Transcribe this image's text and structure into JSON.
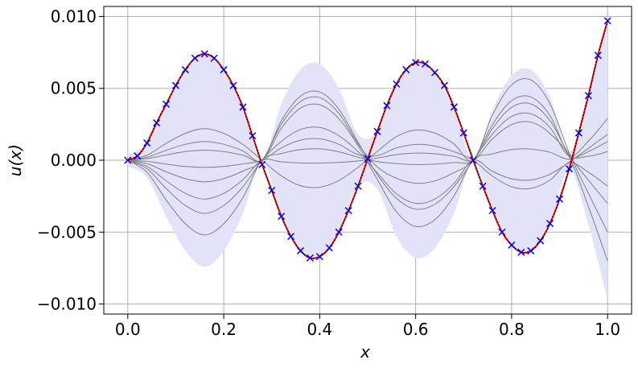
{
  "chart_data": {
    "type": "line",
    "xlabel": "x",
    "ylabel": "u(x)",
    "xlim": [
      -0.05,
      1.05
    ],
    "ylim": [
      -0.0107,
      0.0107
    ],
    "xticks": [
      {
        "value": 0,
        "label": "0.0"
      },
      {
        "value": 0.2,
        "label": "0.2"
      },
      {
        "value": 0.4,
        "label": "0.4"
      },
      {
        "value": 0.6,
        "label": "0.6"
      },
      {
        "value": 0.8,
        "label": "0.8"
      },
      {
        "value": 1,
        "label": "1.0"
      }
    ],
    "yticks": [
      {
        "value": 0.01,
        "label": "0.010"
      },
      {
        "value": 0.005,
        "label": "0.005"
      },
      {
        "value": 0,
        "label": "0.000"
      },
      {
        "value": -0.005,
        "label": "−0.005"
      },
      {
        "value": -0.01,
        "label": "−0.010"
      }
    ],
    "grid": true,
    "band": {
      "color": "#e2e2f8",
      "x": [
        0,
        0.04,
        0.08,
        0.12,
        0.16,
        0.2,
        0.24,
        0.28,
        0.32,
        0.36,
        0.4,
        0.44,
        0.48,
        0.52,
        0.56,
        0.6,
        0.64,
        0.68,
        0.72,
        0.76,
        0.8,
        0.84,
        0.88,
        0.92,
        0.96,
        1
      ],
      "upper": [
        0.0004,
        0.0012,
        0.0039,
        0.0063,
        0.0074,
        0.0063,
        0.0037,
        0,
        0.0039,
        0.0063,
        0.0067,
        0.005,
        0.0018,
        0.002,
        0.0053,
        0.0068,
        0.0061,
        0.0037,
        0,
        0.0035,
        0.0059,
        0.0063,
        0.0044,
        0.0006,
        0.0045,
        0.0097
      ],
      "lower": [
        -0.0004,
        -0.0012,
        -0.0039,
        -0.0063,
        -0.0074,
        -0.0063,
        -0.0037,
        0,
        -0.0039,
        -0.0063,
        -0.0067,
        -0.005,
        -0.0018,
        -0.002,
        -0.0053,
        -0.0068,
        -0.0061,
        -0.0037,
        0,
        -0.0035,
        -0.0059,
        -0.0063,
        -0.0044,
        -0.0006,
        -0.0045,
        -0.0097
      ]
    },
    "samples": {
      "color": "#808080",
      "x": [
        0,
        0.04,
        0.08,
        0.12,
        0.16,
        0.2,
        0.24,
        0.28,
        0.32,
        0.36,
        0.4,
        0.44,
        0.48,
        0.52,
        0.56,
        0.6,
        0.64,
        0.68,
        0.72,
        0.76,
        0.8,
        0.84,
        0.88,
        0.92,
        0.96,
        1
      ],
      "series": [
        {
          "values": [
            0,
            0.00035,
            0.00117,
            0.00187,
            0.0022,
            0.00187,
            0.0011,
            0,
            -0.00108,
            -0.00177,
            -0.00188,
            -0.00141,
            -0.00049,
            0.00061,
            0.00164,
            0.0021,
            0.00189,
            0.00113,
            0,
            0.00314,
            0.00524,
            0.00559,
            0.00393,
            0.00051,
            -0.0023,
            -0.005
          ]
        },
        {
          "values": [
            0,
            0.00021,
            0.00069,
            0.00111,
            0.0013,
            0.00111,
            0.00065,
            0,
            0.00274,
            0.00446,
            0.00475,
            0.00355,
            0.00125,
            -0.00099,
            -0.00265,
            -0.0034,
            -0.00306,
            -0.00184,
            0,
            0.00182,
            0.00304,
            0.00323,
            0.00228,
            0.0003,
            0.00133,
            0.0029
          ]
        },
        {
          "values": [
            0,
            0.00011,
            0.00037,
            0.0006,
            0.0007,
            0.0006,
            0.00035,
            0,
            0.00222,
            0.00363,
            0.00386,
            0.00289,
            0.00101,
            -0.00133,
            -0.00359,
            -0.0046,
            -0.00414,
            -0.00248,
            0,
            0.00044,
            0.00074,
            0.00078,
            0.00055,
            7e-05,
            0.0006,
            0.0013
          ]
        },
        {
          "values": [
            0,
            -8e-05,
            -0.00027,
            -0.00043,
            -0.0005,
            -0.00043,
            -0.00025,
            0,
            0.00086,
            0.0014,
            0.00149,
            0.00111,
            0.00039,
            0.00032,
            0.00086,
            0.0011,
            0.00099,
            0.00059,
            0,
            -0.0011,
            -0.00184,
            -0.00196,
            -0.00138,
            -0.00018,
            -0.00083,
            -0.0018
          ]
        },
        {
          "values": [
            0,
            -0.00024,
            -0.0008,
            -0.00128,
            -0.0015,
            -0.00128,
            -0.00075,
            0,
            0.00251,
            0.00409,
            0.00436,
            0.00326,
            0.00114,
            -0.00046,
            -0.00125,
            -0.0016,
            -0.00144,
            -0.00086,
            0,
            0.00248,
            0.00414,
            0.00441,
            0.00311,
            0.00041,
            0.00028,
            0.0006
          ]
        },
        {
          "values": [
            0,
            -0.00043,
            -0.00143,
            -0.0023,
            -0.0027,
            -0.0023,
            -0.00135,
            0,
            -0.00011,
            -0.00019,
            -0.0002,
            -0.00015,
            -5e-05,
            0.00015,
            0.00039,
            0.0005,
            0.00045,
            0.00027,
            0,
            0.00149,
            0.00248,
            0.00265,
            0.00186,
            0.00024,
            -0.00322,
            -0.007
          ]
        },
        {
          "values": [
            0,
            -0.00059,
            -0.00196,
            -0.00315,
            -0.0037,
            -0.00315,
            -0.00185,
            0,
            0.00131,
            0.00214,
            0.00228,
            0.0017,
            0.0006,
            -0.00087,
            -0.00234,
            -0.003,
            -0.0027,
            -0.00162,
            0,
            -0.00077,
            -0.00129,
            -0.00137,
            -0.00097,
            -0.00013,
            0.00083,
            0.0018
          ]
        },
        {
          "values": [
            0,
            -0.00083,
            -0.00276,
            -0.00442,
            -0.0052,
            -0.00442,
            -0.0026,
            0,
            0.00046,
            0.00074,
            0.00079,
            0.00059,
            0.00021,
            -9e-05,
            -0.00023,
            -0.0003,
            -0.00027,
            -0.00016,
            0,
            0.0022,
            0.00368,
            0.00392,
            0.00276,
            0.00036,
            -0.00138,
            -0.003
          ]
        }
      ]
    },
    "x": [
      0,
      0.02,
      0.04,
      0.06,
      0.08,
      0.1,
      0.12,
      0.14,
      0.16,
      0.18,
      0.2,
      0.22,
      0.24,
      0.26,
      0.28,
      0.3,
      0.32,
      0.34,
      0.36,
      0.38,
      0.4,
      0.42,
      0.44,
      0.46,
      0.48,
      0.5,
      0.52,
      0.54,
      0.56,
      0.58,
      0.6,
      0.62,
      0.64,
      0.66,
      0.68,
      0.7,
      0.72,
      0.74,
      0.76,
      0.78,
      0.8,
      0.82,
      0.84,
      0.86,
      0.88,
      0.9,
      0.92,
      0.94,
      0.96,
      0.98,
      1
    ],
    "series": [
      {
        "color": "#ff0000",
        "style": "solid",
        "values": [
          0,
          0.0003,
          0.0012,
          0.0026,
          0.0039,
          0.0052,
          0.0063,
          0.0071,
          0.0074,
          0.0071,
          0.0063,
          0.0052,
          0.0037,
          0.0017,
          -0.0003,
          -0.0021,
          -0.0039,
          -0.0053,
          -0.0063,
          -0.0068,
          -0.0067,
          -0.0061,
          -0.005,
          -0.0035,
          -0.0018,
          0.0001,
          0.002,
          0.0038,
          0.0053,
          0.0063,
          0.0068,
          0.0067,
          0.0061,
          0.0052,
          0.0037,
          0.0019,
          0,
          -0.0018,
          -0.0035,
          -0.005,
          -0.0059,
          -0.0064,
          -0.0063,
          -0.0056,
          -0.0044,
          -0.0027,
          -0.0006,
          0.0019,
          0.0045,
          0.0073,
          0.0097
        ]
      },
      {
        "color": "#000000",
        "style": "dotted",
        "values": [
          0,
          0.0003,
          0.0012,
          0.0026,
          0.0039,
          0.0052,
          0.0063,
          0.0071,
          0.0074,
          0.0071,
          0.0063,
          0.0052,
          0.0037,
          0.0017,
          -0.0003,
          -0.0021,
          -0.0039,
          -0.0053,
          -0.0063,
          -0.0068,
          -0.0067,
          -0.0061,
          -0.005,
          -0.0035,
          -0.0018,
          0.0001,
          0.002,
          0.0038,
          0.0053,
          0.0063,
          0.0068,
          0.0067,
          0.0061,
          0.0052,
          0.0037,
          0.0019,
          0,
          -0.0018,
          -0.0035,
          -0.005,
          -0.0059,
          -0.0064,
          -0.0063,
          -0.0056,
          -0.0044,
          -0.0027,
          -0.0006,
          0.0019,
          0.0045,
          0.0073,
          0.0097
        ]
      },
      {
        "color": "#0000ff",
        "marker": "x",
        "values": [
          0,
          0.0003,
          0.0012,
          0.0026,
          0.0039,
          0.0052,
          0.0063,
          0.0071,
          0.0074,
          0.0071,
          0.0063,
          0.0052,
          0.0037,
          0.0017,
          -0.0003,
          -0.0021,
          -0.0039,
          -0.0053,
          -0.0063,
          -0.0068,
          -0.0067,
          -0.0061,
          -0.005,
          -0.0035,
          -0.0018,
          0.0001,
          0.002,
          0.0038,
          0.0053,
          0.0063,
          0.0068,
          0.0067,
          0.0061,
          0.0052,
          0.0037,
          0.0019,
          0,
          -0.0018,
          -0.0035,
          -0.005,
          -0.0059,
          -0.0064,
          -0.0063,
          -0.0056,
          -0.0044,
          -0.0027,
          -0.0006,
          0.0019,
          0.0045,
          0.0073,
          0.0097
        ]
      }
    ]
  }
}
